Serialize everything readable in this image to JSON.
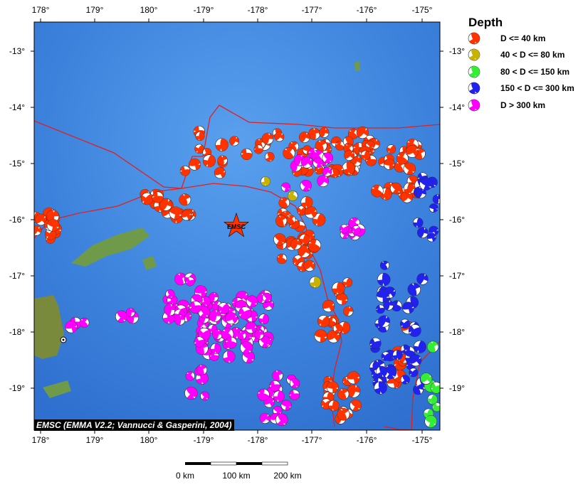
{
  "map": {
    "lon_ticks": [
      "178°",
      "179°",
      "180°",
      "-179°",
      "-178°",
      "-177°",
      "-176°",
      "-175°"
    ],
    "lat_ticks": [
      "-13°",
      "-14°",
      "-15°",
      "-16°",
      "-17°",
      "-18°",
      "-19°"
    ],
    "marker_label": "EMSC",
    "credit": "EMSC (EMMA V2.2; Vannucci & Gasperini, 2004)",
    "colors": {
      "ocean": "#4a8fe0",
      "land": "#6f9a4a",
      "plate_boundary": "#e02020",
      "marker": "#ff3300"
    }
  },
  "legend": {
    "title": "Depth",
    "items": [
      {
        "label": "D <= 40 km",
        "color": "#ff3300"
      },
      {
        "label": "40 < D <= 80 km",
        "color": "#c8b400"
      },
      {
        "label": "80 < D <= 150 km",
        "color": "#33ee33"
      },
      {
        "label": "150 < D <= 300 km",
        "color": "#2222ee"
      },
      {
        "label": "D > 300 km",
        "color": "#ff00ff"
      }
    ]
  },
  "scale_bar": {
    "labels": [
      "0 km",
      "100 km",
      "200 km"
    ]
  }
}
